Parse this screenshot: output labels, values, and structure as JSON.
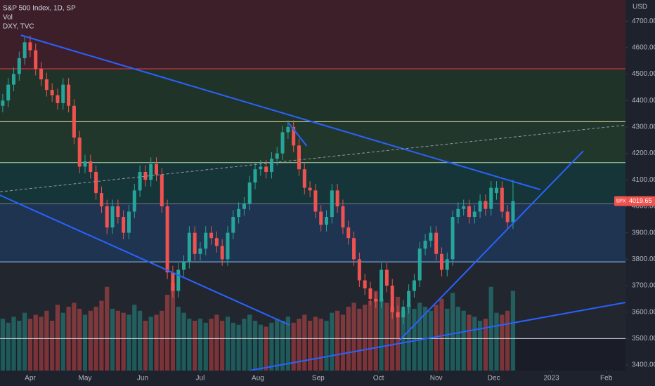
{
  "chart_data": {
    "type": "candlestick",
    "title": "S&P 500 Index, 1D, SP",
    "legend_items": [
      "Vol",
      "DXY, TVC"
    ],
    "y_axis_label": "USD",
    "symbol_tag": "SPX",
    "up_color": "#26a69a",
    "down_color": "#ef5350",
    "xlim": [
      0,
      114
    ],
    "ylim": [
      3379,
      4780
    ],
    "yticks": [
      {
        "value": 4700,
        "label": "4700.00"
      },
      {
        "value": 4600,
        "label": "4600.00"
      },
      {
        "value": 4500,
        "label": "4500.00"
      },
      {
        "value": 4400,
        "label": "4400.00"
      },
      {
        "value": 4300,
        "label": "4300.00"
      },
      {
        "value": 4200,
        "label": "4200.00"
      },
      {
        "value": 4100,
        "label": "4100.00"
      },
      {
        "value": 4000,
        "label": "4000.00"
      },
      {
        "value": 3900,
        "label": "3900.00"
      },
      {
        "value": 3800,
        "label": "3800.00"
      },
      {
        "value": 3700,
        "label": "3700.00"
      },
      {
        "value": 3600,
        "label": "3600.00"
      },
      {
        "value": 3500,
        "label": "3500.00"
      },
      {
        "value": 3400,
        "label": "3400.00"
      }
    ],
    "xticks": [
      {
        "value": 5.5,
        "label": "Apr"
      },
      {
        "value": 15.5,
        "label": "May"
      },
      {
        "value": 26,
        "label": "Jun"
      },
      {
        "value": 36.5,
        "label": "Jul"
      },
      {
        "value": 47,
        "label": "Aug"
      },
      {
        "value": 58,
        "label": "Sep"
      },
      {
        "value": 69,
        "label": "Oct"
      },
      {
        "value": 79.5,
        "label": "Nov"
      },
      {
        "value": 90,
        "label": "Dec"
      },
      {
        "value": 100.5,
        "label": "2023"
      },
      {
        "value": 110.5,
        "label": "Feb"
      }
    ],
    "levels": [
      {
        "value": 4520,
        "color": "#f23645",
        "zone": "#3d1f2a"
      },
      {
        "value": 4320,
        "color": "#e8e3a0",
        "zone": "#1f3329"
      },
      {
        "value": 4165,
        "color": "#a5d6a7",
        "zone": "#22372b"
      },
      {
        "value": 4010,
        "color": "#787b86",
        "zone": "#163538"
      },
      {
        "value": 3790,
        "color": "#90caf9",
        "zone": "#1e3450"
      },
      {
        "value": 3500,
        "color": "#d1d4dc",
        "zone": "#22262f"
      }
    ],
    "trendlines": [
      {
        "x": [
          3.8,
          98.5
        ],
        "y": [
          4647,
          4063
        ],
        "color": "#2962ff",
        "dashed": false
      },
      {
        "x": [
          0,
          52.8
        ],
        "y": [
          4042,
          3551
        ],
        "color": "#2962ff",
        "dashed": false
      },
      {
        "x": [
          72.8,
          106.3
        ],
        "y": [
          3493,
          4209
        ],
        "color": "#2962ff",
        "dashed": false
      },
      {
        "x": [
          45.5,
          119.5
        ],
        "y": [
          3379,
          3657
        ],
        "color": "#2962ff",
        "dashed": false
      },
      {
        "x": [
          52.6,
          55.9
        ],
        "y": [
          4315,
          4228
        ],
        "color": "#2962ff",
        "dashed": false
      },
      {
        "x": [
          0,
          114
        ],
        "y": [
          4055,
          4307
        ],
        "color": "#9598a1",
        "dashed": true
      }
    ],
    "candles": {
      "open": [
        4380,
        4400,
        4460,
        4500,
        4560,
        4620,
        4590,
        4520,
        4480,
        4440,
        4420,
        4390,
        4460,
        4380,
        4260,
        4150,
        4170,
        4130,
        4050,
        4000,
        3920,
        4000,
        3960,
        3900,
        3980,
        4060,
        4130,
        4100,
        4160,
        4120,
        4000,
        3750,
        3680,
        3760,
        3790,
        3900,
        3820,
        3840,
        3900,
        3880,
        3850,
        3800,
        3900,
        3960,
        3990,
        4010,
        4090,
        4140,
        4150,
        4130,
        4180,
        4200,
        4280,
        4300,
        4230,
        4140,
        4070,
        4060,
        3980,
        3930,
        3960,
        4060,
        4000,
        3920,
        3880,
        3800,
        3720,
        3690,
        3650,
        3640,
        3760,
        3700,
        3600,
        3580,
        3620,
        3680,
        3720,
        3840,
        3870,
        3900,
        3820,
        3760,
        3800,
        3960,
        3990,
        4000,
        3960,
        3980,
        4020,
        3990,
        4050,
        4070,
        3980,
        3940
      ],
      "high": [
        4425,
        4485,
        4525,
        4585,
        4645,
        4645,
        4615,
        4545,
        4505,
        4465,
        4445,
        4485,
        4485,
        4405,
        4285,
        4195,
        4195,
        4155,
        4075,
        4025,
        4025,
        4025,
        3985,
        4005,
        4085,
        4155,
        4155,
        4185,
        4185,
        4145,
        4025,
        3775,
        3785,
        3815,
        3925,
        3925,
        3865,
        3925,
        3925,
        3905,
        3875,
        3925,
        3985,
        4015,
        4035,
        4115,
        4165,
        4175,
        4175,
        4205,
        4225,
        4305,
        4325,
        4325,
        4255,
        4165,
        4095,
        4085,
        4005,
        3985,
        4085,
        4085,
        4025,
        3945,
        3905,
        3825,
        3745,
        3715,
        3675,
        3785,
        3785,
        3725,
        3625,
        3645,
        3705,
        3745,
        3865,
        3895,
        3925,
        3925,
        3845,
        3825,
        3985,
        4015,
        4025,
        4025,
        4005,
        4045,
        4045,
        4095,
        4095,
        4095,
        4005,
        4100
      ],
      "low": [
        4355,
        4375,
        4435,
        4475,
        4535,
        4565,
        4495,
        4455,
        4415,
        4395,
        4365,
        4365,
        4355,
        4235,
        4125,
        4125,
        4105,
        4025,
        3975,
        3895,
        3895,
        3935,
        3875,
        3875,
        3955,
        4035,
        4075,
        4075,
        4095,
        3975,
        3725,
        3655,
        3655,
        3735,
        3765,
        3795,
        3795,
        3815,
        3855,
        3825,
        3775,
        3775,
        3875,
        3935,
        3965,
        3985,
        4065,
        4115,
        4105,
        4105,
        4155,
        4175,
        4255,
        4205,
        4115,
        4045,
        4035,
        3955,
        3905,
        3905,
        3935,
        3975,
        3895,
        3855,
        3775,
        3695,
        3665,
        3625,
        3615,
        3615,
        3675,
        3575,
        3500,
        3555,
        3595,
        3655,
        3695,
        3815,
        3845,
        3795,
        3735,
        3735,
        3775,
        3935,
        3965,
        3935,
        3935,
        3955,
        3965,
        3965,
        4025,
        3955,
        3915,
        3915
      ],
      "close": [
        4400,
        4460,
        4500,
        4560,
        4620,
        4590,
        4520,
        4480,
        4440,
        4420,
        4390,
        4460,
        4380,
        4260,
        4150,
        4170,
        4130,
        4050,
        4000,
        3920,
        4000,
        3960,
        3900,
        3980,
        4060,
        4130,
        4100,
        4160,
        4120,
        4000,
        3750,
        3680,
        3760,
        3790,
        3900,
        3820,
        3840,
        3900,
        3880,
        3850,
        3800,
        3900,
        3960,
        3990,
        4010,
        4090,
        4140,
        4150,
        4130,
        4180,
        4200,
        4280,
        4300,
        4230,
        4140,
        4070,
        4060,
        3980,
        3930,
        3960,
        4060,
        4000,
        3920,
        3880,
        3800,
        3720,
        3690,
        3650,
        3640,
        3760,
        3700,
        3600,
        3580,
        3620,
        3680,
        3720,
        3840,
        3870,
        3900,
        3820,
        3760,
        3800,
        3960,
        3990,
        4000,
        3960,
        3980,
        4020,
        3990,
        4070,
        4070,
        3980,
        3940,
        4019.65
      ]
    },
    "volume": [
      2.6,
      2.4,
      2.7,
      2.5,
      2.9,
      2.6,
      2.8,
      2.7,
      3.0,
      2.5,
      3.3,
      2.9,
      3.2,
      3.4,
      3.1,
      2.8,
      3.0,
      3.2,
      3.5,
      4.2,
      3.1,
      3.0,
      2.9,
      2.8,
      3.3,
      3.0,
      2.5,
      2.7,
      2.8,
      3.0,
      3.8,
      4.4,
      3.2,
      2.9,
      2.6,
      2.5,
      2.6,
      2.4,
      2.6,
      2.8,
      2.5,
      2.7,
      2.4,
      2.3,
      2.6,
      2.8,
      2.5,
      2.3,
      2.2,
      2.4,
      2.6,
      2.5,
      2.7,
      2.4,
      2.6,
      2.8,
      2.5,
      2.7,
      2.6,
      2.5,
      2.9,
      3.0,
      2.8,
      3.2,
      3.4,
      3.1,
      3.3,
      3.5,
      4.0,
      3.6,
      3.4,
      3.2,
      3.7,
      3.0,
      3.3,
      3.1,
      3.4,
      3.2,
      3.0,
      3.3,
      3.6,
      3.1,
      3.9,
      3.2,
      3.0,
      2.8,
      2.7,
      2.5,
      2.6,
      4.2,
      2.9,
      2.8,
      3.0,
      4.0
    ]
  }
}
